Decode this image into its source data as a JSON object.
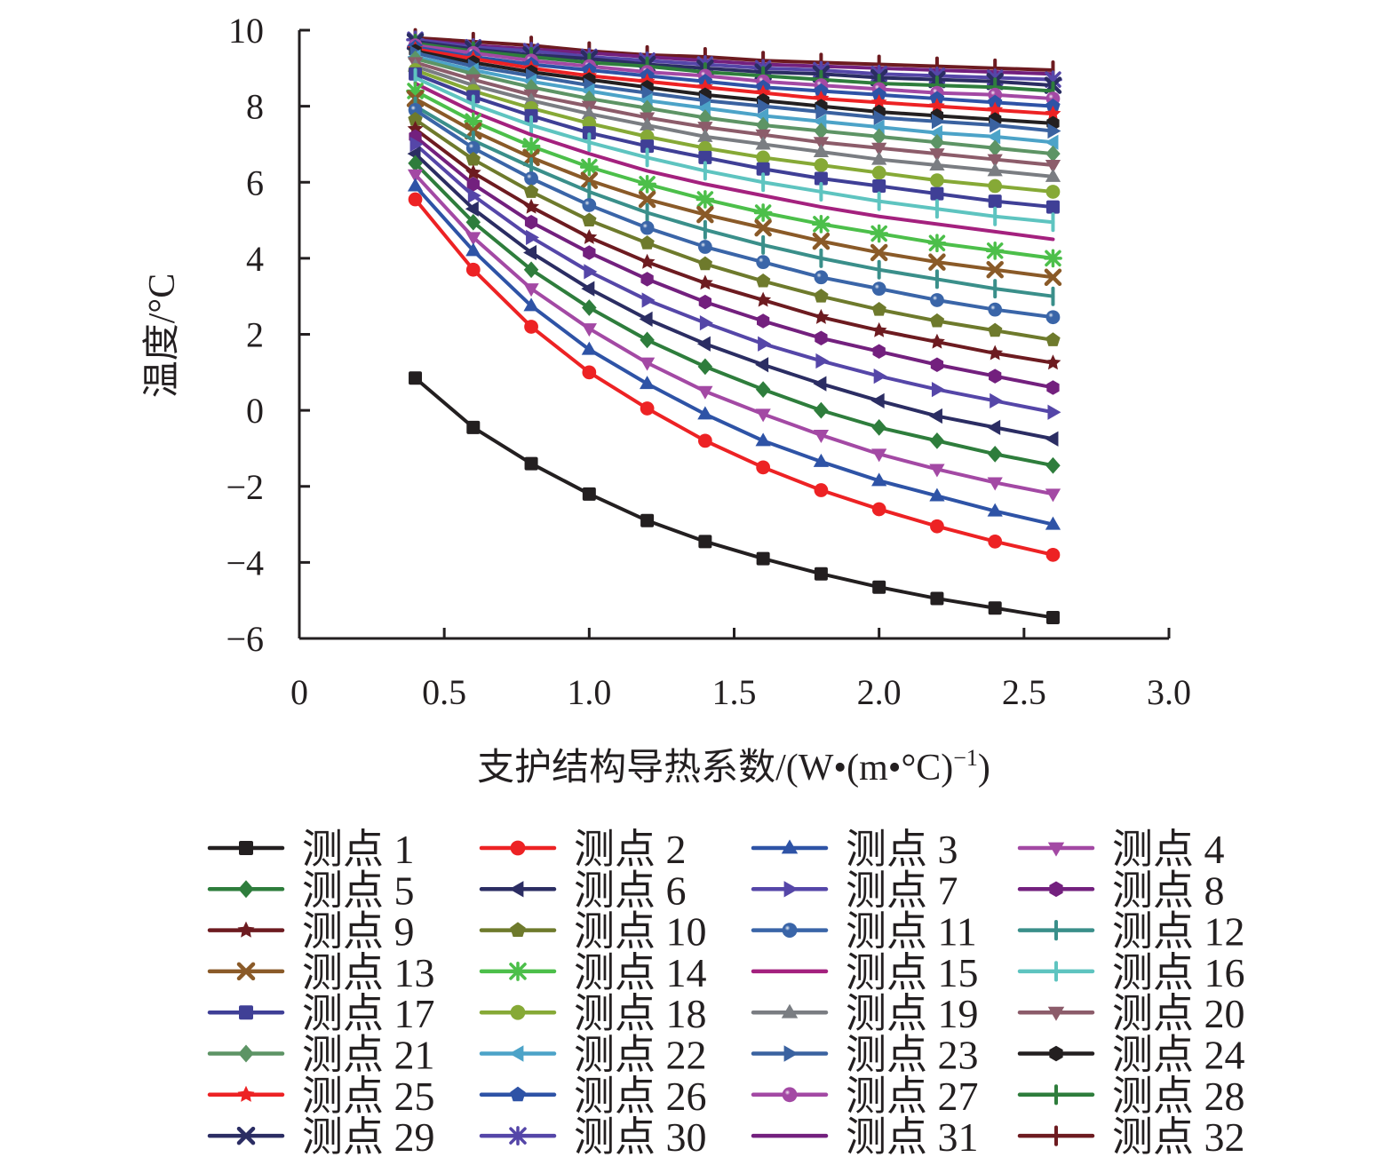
{
  "chart_data": {
    "type": "line",
    "title": "",
    "xlabel": "支护结构导热系数/(W•(m•°C)⁻¹)",
    "xlabel_main": "支护结构导热系数/(W•(m•°C)",
    "xlabel_sup": "−1",
    "xlabel_close": ")",
    "ylabel": "温度/°C",
    "xlim": [
      0,
      3.0
    ],
    "ylim": [
      -6,
      10
    ],
    "xticks": [
      0,
      0.5,
      1.0,
      1.5,
      2.0,
      2.5,
      3.0
    ],
    "xtick_labels": [
      "0",
      "0.5",
      "1.0",
      "1.5",
      "2.0",
      "2.5",
      "3.0"
    ],
    "yticks": [
      -6,
      -4,
      -2,
      0,
      2,
      4,
      6,
      8,
      10
    ],
    "ytick_labels": [
      "−6",
      "−4",
      "−2",
      "0",
      "2",
      "4",
      "6",
      "8",
      "10"
    ],
    "grid": false,
    "legend_placement": "bottom",
    "x": [
      0.4,
      0.6,
      0.8,
      1.0,
      1.2,
      1.4,
      1.6,
      1.8,
      2.0,
      2.2,
      2.4,
      2.6
    ],
    "series": [
      {
        "name": "测点 1",
        "color": "#231f20",
        "marker": "square",
        "values": [
          0.85,
          -0.45,
          -1.4,
          -2.2,
          -2.9,
          -3.45,
          -3.9,
          -4.3,
          -4.65,
          -4.95,
          -5.2,
          -5.45
        ]
      },
      {
        "name": "测点 2",
        "color": "#ed2224",
        "marker": "circle",
        "values": [
          5.55,
          3.7,
          2.2,
          1.0,
          0.05,
          -0.8,
          -1.5,
          -2.1,
          -2.6,
          -3.05,
          -3.45,
          -3.8
        ]
      },
      {
        "name": "测点 3",
        "color": "#2e53a6",
        "marker": "triangle-up",
        "values": [
          5.9,
          4.2,
          2.75,
          1.6,
          0.7,
          -0.1,
          -0.8,
          -1.35,
          -1.85,
          -2.25,
          -2.65,
          -3.0
        ]
      },
      {
        "name": "测点 4",
        "color": "#a349a4",
        "marker": "triangle-down",
        "values": [
          6.2,
          4.55,
          3.2,
          2.15,
          1.25,
          0.5,
          -0.1,
          -0.65,
          -1.15,
          -1.55,
          -1.9,
          -2.2
        ]
      },
      {
        "name": "测点 5",
        "color": "#2e7d3c",
        "marker": "diamond",
        "values": [
          6.5,
          4.95,
          3.7,
          2.7,
          1.85,
          1.15,
          0.55,
          0.0,
          -0.45,
          -0.8,
          -1.15,
          -1.45
        ]
      },
      {
        "name": "测点 6",
        "color": "#2b2d63",
        "marker": "triangle-left",
        "values": [
          6.75,
          5.3,
          4.15,
          3.2,
          2.4,
          1.75,
          1.2,
          0.7,
          0.25,
          -0.15,
          -0.45,
          -0.75
        ]
      },
      {
        "name": "测点 7",
        "color": "#5546a8",
        "marker": "triangle-right",
        "values": [
          7.0,
          5.65,
          4.55,
          3.65,
          2.9,
          2.3,
          1.75,
          1.3,
          0.9,
          0.55,
          0.25,
          -0.05
        ]
      },
      {
        "name": "测点 8",
        "color": "#73207e",
        "marker": "hexagon",
        "values": [
          7.2,
          5.95,
          4.95,
          4.15,
          3.45,
          2.85,
          2.35,
          1.9,
          1.55,
          1.2,
          0.9,
          0.6
        ]
      },
      {
        "name": "测点 9",
        "color": "#6d1b20",
        "marker": "star",
        "values": [
          7.4,
          6.25,
          5.35,
          4.55,
          3.9,
          3.35,
          2.9,
          2.45,
          2.1,
          1.8,
          1.5,
          1.25
        ]
      },
      {
        "name": "测点 10",
        "color": "#6e7a2c",
        "marker": "pentagon",
        "values": [
          7.65,
          6.6,
          5.75,
          5.0,
          4.4,
          3.85,
          3.4,
          3.0,
          2.65,
          2.35,
          2.1,
          1.85
        ]
      },
      {
        "name": "测点 11",
        "color": "#3a65a8",
        "marker": "sphere",
        "values": [
          7.9,
          6.9,
          6.1,
          5.4,
          4.8,
          4.3,
          3.9,
          3.5,
          3.2,
          2.9,
          2.65,
          2.45
        ]
      },
      {
        "name": "测点 12",
        "color": "#3a8f8a",
        "marker": "plus",
        "values": [
          8.0,
          7.1,
          6.4,
          5.75,
          5.2,
          4.75,
          4.35,
          4.0,
          3.7,
          3.45,
          3.2,
          3.0
        ]
      },
      {
        "name": "测点 13",
        "color": "#8a5a28",
        "marker": "x",
        "values": [
          8.2,
          7.35,
          6.65,
          6.05,
          5.55,
          5.15,
          4.8,
          4.45,
          4.15,
          3.9,
          3.7,
          3.5
        ]
      },
      {
        "name": "测点 14",
        "color": "#4cbf4a",
        "marker": "asterisk",
        "values": [
          8.4,
          7.6,
          6.95,
          6.4,
          5.95,
          5.55,
          5.2,
          4.9,
          4.65,
          4.4,
          4.2,
          4.0
        ]
      },
      {
        "name": "测点 15",
        "color": "#a4217e",
        "marker": "none",
        "values": [
          8.6,
          7.85,
          7.25,
          6.75,
          6.3,
          5.95,
          5.65,
          5.35,
          5.1,
          4.9,
          4.7,
          4.5
        ]
      },
      {
        "name": "测点 16",
        "color": "#5ec4c0",
        "marker": "plus",
        "values": [
          8.75,
          8.05,
          7.5,
          7.05,
          6.65,
          6.3,
          6.0,
          5.75,
          5.5,
          5.3,
          5.1,
          4.95
        ]
      },
      {
        "name": "测点 17",
        "color": "#3f3f96",
        "marker": "square",
        "values": [
          8.85,
          8.25,
          7.75,
          7.3,
          6.95,
          6.65,
          6.35,
          6.1,
          5.9,
          5.7,
          5.5,
          5.35
        ]
      },
      {
        "name": "测点 18",
        "color": "#86a936",
        "marker": "circle",
        "values": [
          8.95,
          8.4,
          7.95,
          7.55,
          7.2,
          6.9,
          6.65,
          6.45,
          6.25,
          6.05,
          5.9,
          5.75
        ]
      },
      {
        "name": "测点 19",
        "color": "#7a7d82",
        "marker": "triangle-up",
        "values": [
          9.05,
          8.55,
          8.15,
          7.8,
          7.5,
          7.2,
          7.0,
          6.8,
          6.6,
          6.45,
          6.3,
          6.15
        ]
      },
      {
        "name": "测点 20",
        "color": "#8c5c6a",
        "marker": "triangle-down",
        "values": [
          9.15,
          8.7,
          8.3,
          8.0,
          7.7,
          7.45,
          7.25,
          7.05,
          6.9,
          6.75,
          6.6,
          6.45
        ]
      },
      {
        "name": "测点 21",
        "color": "#5d9465",
        "marker": "diamond",
        "values": [
          9.25,
          8.85,
          8.5,
          8.2,
          7.95,
          7.7,
          7.5,
          7.35,
          7.2,
          7.05,
          6.9,
          6.75
        ]
      },
      {
        "name": "测点 22",
        "color": "#4ca3c8",
        "marker": "triangle-left",
        "values": [
          9.3,
          8.95,
          8.65,
          8.4,
          8.15,
          7.95,
          7.75,
          7.6,
          7.45,
          7.3,
          7.2,
          7.05
        ]
      },
      {
        "name": "测点 23",
        "color": "#3a62a0",
        "marker": "triangle-right",
        "values": [
          9.4,
          9.05,
          8.8,
          8.55,
          8.35,
          8.15,
          8.0,
          7.85,
          7.7,
          7.6,
          7.5,
          7.35
        ]
      },
      {
        "name": "测点 24",
        "color": "#231f20",
        "marker": "hexagon",
        "values": [
          9.45,
          9.15,
          8.9,
          8.7,
          8.5,
          8.3,
          8.15,
          8.0,
          7.85,
          7.75,
          7.65,
          7.55
        ]
      },
      {
        "name": "测点 25",
        "color": "#ed2224",
        "marker": "star",
        "values": [
          9.5,
          9.25,
          9.0,
          8.8,
          8.65,
          8.5,
          8.35,
          8.2,
          8.1,
          8.0,
          7.9,
          7.8
        ]
      },
      {
        "name": "测点 26",
        "color": "#2e53a6",
        "marker": "pentagon",
        "values": [
          9.55,
          9.3,
          9.1,
          8.95,
          8.8,
          8.65,
          8.5,
          8.4,
          8.3,
          8.2,
          8.1,
          8.0
        ]
      },
      {
        "name": "测点 27",
        "color": "#a349a4",
        "marker": "sphere",
        "values": [
          9.6,
          9.4,
          9.2,
          9.05,
          8.9,
          8.8,
          8.65,
          8.55,
          8.45,
          8.35,
          8.3,
          8.2
        ]
      },
      {
        "name": "测点 28",
        "color": "#2e7d3c",
        "marker": "plus",
        "values": [
          9.65,
          9.45,
          9.3,
          9.15,
          9.05,
          8.9,
          8.8,
          8.7,
          8.6,
          8.55,
          8.5,
          8.4
        ]
      },
      {
        "name": "测点 29",
        "color": "#2b2d63",
        "marker": "x",
        "values": [
          9.7,
          9.5,
          9.35,
          9.25,
          9.1,
          9.0,
          8.9,
          8.85,
          8.75,
          8.7,
          8.65,
          8.55
        ]
      },
      {
        "name": "测点 30",
        "color": "#5546a8",
        "marker": "asterisk",
        "values": [
          9.75,
          9.55,
          9.45,
          9.3,
          9.2,
          9.1,
          9.0,
          8.95,
          8.85,
          8.8,
          8.75,
          8.7
        ]
      },
      {
        "name": "测点 31",
        "color": "#73207e",
        "marker": "none",
        "values": [
          9.75,
          9.6,
          9.5,
          9.4,
          9.3,
          9.2,
          9.1,
          9.05,
          9.0,
          8.95,
          8.9,
          8.85
        ]
      },
      {
        "name": "测点 32",
        "color": "#6d1b20",
        "marker": "plus",
        "values": [
          9.8,
          9.7,
          9.6,
          9.45,
          9.35,
          9.3,
          9.2,
          9.15,
          9.1,
          9.05,
          9.0,
          8.95
        ]
      }
    ]
  }
}
